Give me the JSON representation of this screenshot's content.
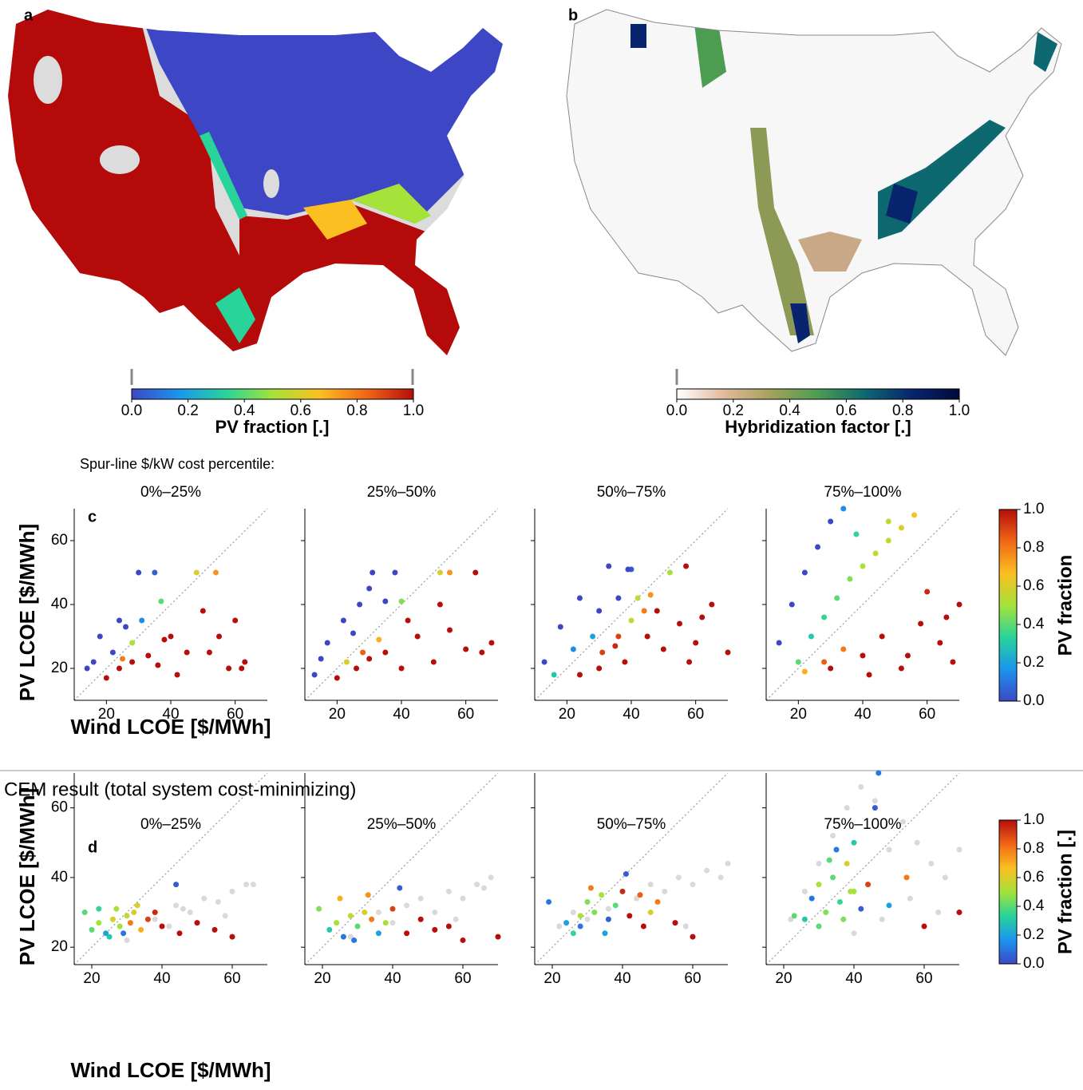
{
  "chart_data": [
    {
      "type": "map",
      "panel_label": "a",
      "colorbar": {
        "label": "PV fraction [.]",
        "lim": [
          0,
          1
        ],
        "ticks": [
          {
            "value": 0,
            "label": "0.0"
          },
          0.2,
          0.4,
          0.6,
          0.8,
          {
            "value": 1,
            "label": "1.0"
          }
        ],
        "colors": [
          "#3d47c5",
          "#1b95ee",
          "#28d49a",
          "#a5e23a",
          "#fcbf22",
          "#f16717",
          "#b50e0b"
        ]
      }
    },
    {
      "type": "map",
      "panel_label": "b",
      "colorbar": {
        "label": "Hybridization factor [.]",
        "lim": [
          0,
          1
        ],
        "ticks": [
          {
            "value": 0,
            "label": "0.0"
          },
          0.2,
          0.4,
          0.6,
          0.8,
          {
            "value": 1,
            "label": "1.0"
          }
        ],
        "colors": [
          "#ffffff",
          "#e2b99c",
          "#a4a25a",
          "#4c9c52",
          "#0e6870",
          "#08246e",
          "#000a3c"
        ]
      }
    },
    {
      "type": "scatter",
      "panel_label": "c",
      "heading": "Spur-line $/kW cost percentile:",
      "xlabel": "Wind LCOE [$/MWh]",
      "ylabel": "PV LCOE [$/MWh]",
      "xlim": [
        10,
        70
      ],
      "ylim": [
        10,
        70
      ],
      "xticks": [
        20,
        40,
        60
      ],
      "yticks": [
        20,
        40,
        60
      ],
      "colorbar": {
        "label": "PV fraction",
        "lim": [
          0,
          1
        ],
        "ticks": [
          {
            "value": 0,
            "label": "0.0"
          },
          0.2,
          0.4,
          0.6,
          0.8,
          {
            "value": 1,
            "label": "1.0"
          }
        ],
        "colors": [
          "#3d47c5",
          "#1b95ee",
          "#28d49a",
          "#a5e23a",
          "#fcbf22",
          "#f16717",
          "#b50e0b"
        ]
      },
      "facets": [
        {
          "title": "0%–25%",
          "x": [
            14,
            18,
            22,
            26,
            16,
            24,
            28,
            30,
            35,
            37,
            20,
            24,
            28,
            33,
            36,
            40,
            45,
            50,
            55,
            60,
            63,
            52,
            58,
            38,
            42,
            25,
            31,
            48,
            54,
            62
          ],
          "y": [
            20,
            30,
            25,
            33,
            22,
            35,
            28,
            50,
            50,
            41,
            17,
            20,
            22,
            24,
            21,
            30,
            25,
            38,
            30,
            35,
            22,
            25,
            20,
            29,
            18,
            23,
            35,
            50,
            50,
            20
          ],
          "c": [
            0,
            0,
            0,
            0,
            0,
            0,
            0.5,
            0,
            0.05,
            0.4,
            1,
            1,
            1,
            1,
            1,
            1,
            1,
            1,
            1,
            1,
            1,
            1,
            1,
            1,
            1,
            0.8,
            0.15,
            0.6,
            0.75,
            1
          ]
        },
        {
          "title": "25%–50%",
          "x": [
            13,
            17,
            22,
            27,
            15,
            25,
            30,
            35,
            38,
            31,
            40,
            20,
            26,
            30,
            35,
            40,
            45,
            50,
            55,
            60,
            65,
            68,
            52,
            28,
            33,
            23,
            52,
            55,
            63,
            42
          ],
          "y": [
            18,
            28,
            35,
            40,
            23,
            31,
            45,
            41,
            50,
            50,
            41,
            17,
            20,
            23,
            25,
            20,
            30,
            22,
            32,
            26,
            25,
            28,
            40,
            25,
            29,
            22,
            50,
            50,
            50,
            35
          ],
          "c": [
            0,
            0,
            0,
            0,
            0,
            0,
            0,
            0,
            0,
            0,
            0.45,
            1,
            1,
            1,
            1,
            1,
            1,
            1,
            1,
            1,
            1,
            1,
            1,
            0.85,
            0.7,
            0.6,
            0.6,
            0.75,
            1,
            1
          ]
        },
        {
          "title": "50%–75%",
          "x": [
            13,
            18,
            24,
            30,
            36,
            40,
            16,
            22,
            28,
            35,
            42,
            46,
            24,
            30,
            38,
            45,
            50,
            55,
            60,
            65,
            70,
            48,
            58,
            62,
            31,
            36,
            44,
            52,
            57,
            40,
            33,
            39
          ],
          "y": [
            22,
            33,
            42,
            38,
            42,
            35,
            18,
            26,
            30,
            27,
            42,
            43,
            18,
            20,
            22,
            30,
            26,
            34,
            28,
            40,
            25,
            38,
            22,
            36,
            25,
            30,
            38,
            50,
            52,
            51,
            52,
            51
          ],
          "c": [
            0,
            0,
            0,
            0,
            0,
            0.55,
            0.3,
            0.15,
            0.2,
            0.95,
            0.55,
            0.75,
            1,
            1,
            1,
            1,
            1,
            1,
            1,
            1,
            1,
            1,
            1,
            1,
            0.9,
            0.9,
            0.8,
            0.5,
            1,
            0.05,
            0,
            0
          ]
        },
        {
          "title": "75%–100%",
          "x": [
            14,
            18,
            22,
            26,
            30,
            34,
            38,
            20,
            24,
            28,
            32,
            36,
            40,
            44,
            48,
            52,
            56,
            22,
            28,
            34,
            40,
            46,
            52,
            58,
            64,
            70,
            60,
            66,
            30,
            42,
            54,
            68,
            48
          ],
          "y": [
            28,
            40,
            50,
            58,
            66,
            70,
            62,
            22,
            30,
            36,
            42,
            48,
            52,
            56,
            60,
            64,
            68,
            19,
            22,
            26,
            24,
            30,
            20,
            34,
            28,
            40,
            44,
            36,
            20,
            18,
            24,
            22,
            66
          ],
          "c": [
            0,
            0,
            0,
            0,
            0,
            0.15,
            0.35,
            0.4,
            0.3,
            0.35,
            0.4,
            0.45,
            0.5,
            0.55,
            0.55,
            0.6,
            0.65,
            0.7,
            0.85,
            0.8,
            1,
            1,
            1,
            1,
            1,
            1,
            0.95,
            1,
            1,
            1,
            1,
            1,
            0.55
          ]
        }
      ]
    },
    {
      "type": "scatter",
      "panel_label": "d",
      "heading": "CEM result (total system cost-minimizing)",
      "xlabel": "Wind LCOE [$/MWh]",
      "ylabel": "PV LCOE [$/MWh]",
      "xlim": [
        15,
        70
      ],
      "ylim": [
        15,
        70
      ],
      "xticks": [
        20,
        40,
        60
      ],
      "yticks": [
        20,
        40,
        60
      ],
      "candidate_color": "#d9d9d9",
      "colorbar": {
        "label": "PV fraction [.]",
        "lim": [
          0,
          1
        ],
        "ticks": [
          {
            "value": 0,
            "label": "0.0"
          },
          0.2,
          0.4,
          0.6,
          0.8,
          {
            "value": 1,
            "label": "1.0"
          }
        ],
        "colors": [
          "#3d47c5",
          "#1b95ee",
          "#28d49a",
          "#a5e23a",
          "#fcbf22",
          "#f16717",
          "#b50e0b"
        ]
      },
      "facets": [
        {
          "title": "0%–25%",
          "candidates_x": [
            30,
            38,
            44,
            48,
            52,
            56,
            60,
            64,
            66,
            42,
            46,
            58
          ],
          "candidates_y": [
            22,
            28,
            32,
            30,
            34,
            33,
            36,
            38,
            38,
            26,
            31,
            29
          ],
          "x": [
            18,
            20,
            22,
            24,
            26,
            28,
            30,
            32,
            34,
            25,
            27,
            29,
            31,
            36,
            40,
            45,
            50,
            55,
            60,
            22,
            33,
            38,
            44
          ],
          "y": [
            30,
            25,
            27,
            24,
            28,
            26,
            29,
            30,
            25,
            23,
            31,
            24,
            27,
            28,
            26,
            24,
            27,
            25,
            23,
            31,
            32,
            30,
            38
          ],
          "c": [
            0.4,
            0.4,
            0.5,
            0.2,
            0.6,
            0.5,
            0.55,
            0.6,
            0.7,
            0.3,
            0.5,
            0.1,
            0.8,
            0.9,
            1,
            1,
            1,
            1,
            1,
            0.35,
            0.6,
            0.95,
            0.05
          ]
        },
        {
          "title": "25%–50%",
          "candidates_x": [
            28,
            36,
            44,
            48,
            52,
            56,
            60,
            64,
            66,
            68,
            40,
            58
          ],
          "candidates_y": [
            23,
            30,
            32,
            34,
            30,
            36,
            34,
            38,
            37,
            40,
            27,
            28
          ],
          "x": [
            19,
            22,
            24,
            26,
            28,
            30,
            32,
            34,
            36,
            38,
            40,
            25,
            29,
            33,
            44,
            48,
            52,
            56,
            60,
            70,
            42
          ],
          "y": [
            31,
            25,
            27,
            23,
            29,
            26,
            30,
            28,
            24,
            27,
            31,
            34,
            22,
            35,
            24,
            28,
            25,
            26,
            22,
            23,
            37
          ],
          "c": [
            0.45,
            0.3,
            0.5,
            0.1,
            0.55,
            0.4,
            0.6,
            0.8,
            0.2,
            0.5,
            0.9,
            0.7,
            0.1,
            0.75,
            1,
            1,
            1,
            1,
            1,
            1,
            0.05
          ]
        },
        {
          "title": "50%–75%",
          "candidates_x": [
            22,
            26,
            30,
            36,
            44,
            48,
            52,
            56,
            60,
            64,
            68,
            70,
            58
          ],
          "candidates_y": [
            26,
            30,
            28,
            31,
            34,
            38,
            36,
            40,
            38,
            42,
            40,
            44,
            26
          ],
          "x": [
            19,
            24,
            26,
            28,
            30,
            32,
            34,
            36,
            38,
            40,
            28,
            31,
            35,
            42,
            46,
            50,
            55,
            60,
            41,
            45,
            48
          ],
          "y": [
            33,
            27,
            24,
            29,
            33,
            30,
            35,
            28,
            32,
            36,
            26,
            37,
            24,
            29,
            26,
            33,
            27,
            23,
            41,
            35,
            30
          ],
          "c": [
            0.1,
            0.2,
            0.35,
            0.5,
            0.45,
            0.45,
            0.5,
            0.05,
            0.4,
            0.95,
            0.1,
            0.8,
            0.2,
            1,
            1,
            0.8,
            1,
            1,
            0.05,
            0.85,
            0.6
          ]
        },
        {
          "title": "75%–100%",
          "candidates_x": [
            22,
            26,
            30,
            34,
            38,
            42,
            46,
            50,
            54,
            58,
            62,
            66,
            70,
            40,
            48,
            56,
            64
          ],
          "candidates_y": [
            28,
            36,
            44,
            52,
            60,
            66,
            62,
            48,
            56,
            50,
            44,
            40,
            48,
            24,
            28,
            34,
            30
          ],
          "x": [
            23,
            26,
            28,
            30,
            32,
            34,
            36,
            38,
            40,
            42,
            33,
            35,
            37,
            39,
            44,
            46,
            50,
            55,
            60,
            70,
            47,
            30,
            40
          ],
          "y": [
            29,
            28,
            34,
            38,
            30,
            40,
            33,
            44,
            36,
            31,
            45,
            48,
            28,
            36,
            38,
            60,
            32,
            40,
            26,
            30,
            70,
            26,
            50
          ],
          "c": [
            0.4,
            0.3,
            0.1,
            0.5,
            0.45,
            0.4,
            0.35,
            0.6,
            0.5,
            0.05,
            0.4,
            0.1,
            0.45,
            0.5,
            0.9,
            0.05,
            0.2,
            0.8,
            1,
            1,
            0.1,
            0.4,
            0.3
          ]
        }
      ]
    }
  ]
}
